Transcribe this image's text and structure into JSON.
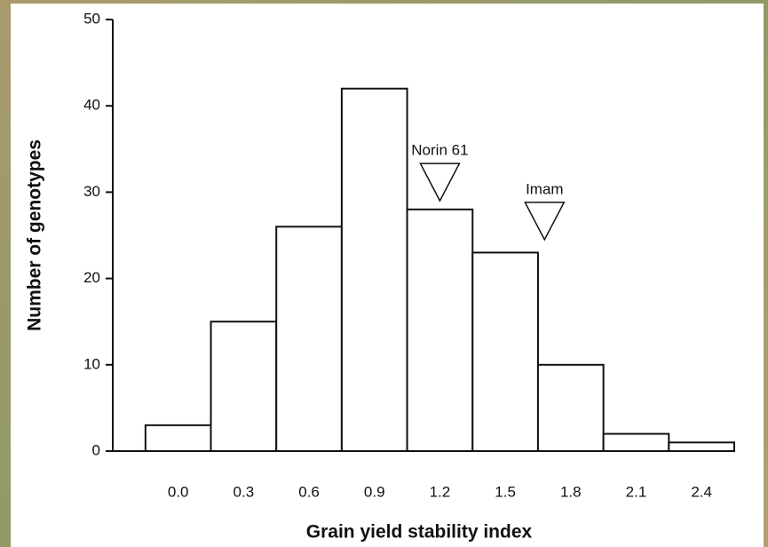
{
  "chart_data": {
    "type": "histogram",
    "xlabel": "Grain yield stability index",
    "ylabel": "Number of genotypes",
    "bins": [
      -0.15,
      0.15,
      0.45,
      0.75,
      1.05,
      1.35,
      1.65,
      1.95,
      2.25,
      2.55
    ],
    "values": [
      3,
      15,
      26,
      42,
      28,
      23,
      10,
      2,
      1
    ],
    "color": "#ffffff",
    "xlim": [
      -0.3,
      2.55
    ],
    "xticks": [
      {
        "value": 0,
        "label": "0.0"
      },
      0.3,
      0.6,
      0.9,
      1.2,
      1.5,
      1.8,
      2.1,
      2.4
    ],
    "ylim": [
      0,
      50
    ],
    "yticks": [
      0,
      10,
      20,
      30,
      40,
      50
    ],
    "annotations": [
      {
        "text": "Norin 61",
        "x": 1.2,
        "y": 29
      },
      {
        "text": "Imam",
        "x": 1.68,
        "y": 24.5
      }
    ]
  }
}
